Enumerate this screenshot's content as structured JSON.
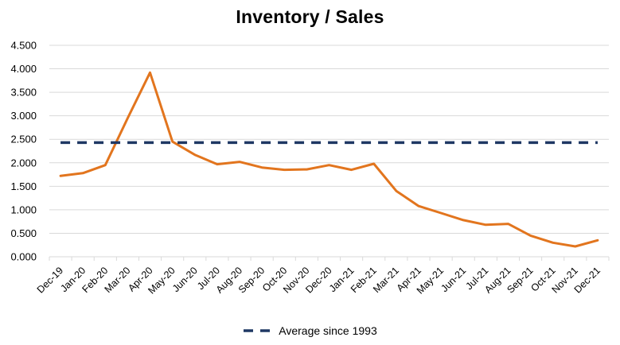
{
  "title": "Inventory / Sales",
  "legend": {
    "label": "Average since 1993"
  },
  "colors": {
    "series": "#E2751E",
    "average": "#1F3864",
    "gridline": "#D9D9D9",
    "text": "#000000",
    "background": "#FFFFFF"
  },
  "chart_data": {
    "type": "line",
    "title": "Inventory / Sales",
    "categories": [
      "Dec-19",
      "Jan-20",
      "Feb-20",
      "Mar-20",
      "Apr-20",
      "May-20",
      "Jun-20",
      "Jul-20",
      "Aug-20",
      "Sep-20",
      "Oct-20",
      "Nov-20",
      "Dec-20",
      "Jan-21",
      "Feb-21",
      "Mar-21",
      "Apr-21",
      "May-21",
      "Jun-21",
      "Jul-21",
      "Aug-21",
      "Sep-21",
      "Oct-21",
      "Nov-21",
      "Dec-21"
    ],
    "series": [
      {
        "name": "Inventory / Sales",
        "style": "solid",
        "color": "#E2751E",
        "values": [
          1.72,
          1.78,
          1.95,
          2.95,
          3.92,
          2.45,
          2.17,
          1.97,
          2.02,
          1.9,
          1.85,
          1.86,
          1.95,
          1.85,
          1.98,
          1.4,
          1.08,
          0.93,
          0.78,
          0.68,
          0.7,
          0.45,
          0.3,
          0.22,
          0.35
        ]
      },
      {
        "name": "Average since 1993",
        "style": "dashed",
        "color": "#1F3864",
        "constant_value": 2.43
      }
    ],
    "xlabel": "",
    "ylabel": "",
    "ylim": [
      0,
      4.5
    ],
    "ytick_step": 0.5,
    "ytick_labels": [
      "0.000",
      "0.500",
      "1.000",
      "1.500",
      "2.000",
      "2.500",
      "3.000",
      "3.500",
      "4.000",
      "4.500"
    ],
    "grid": true,
    "legend_position": "bottom",
    "legend_entries": [
      "Average since 1993"
    ]
  }
}
